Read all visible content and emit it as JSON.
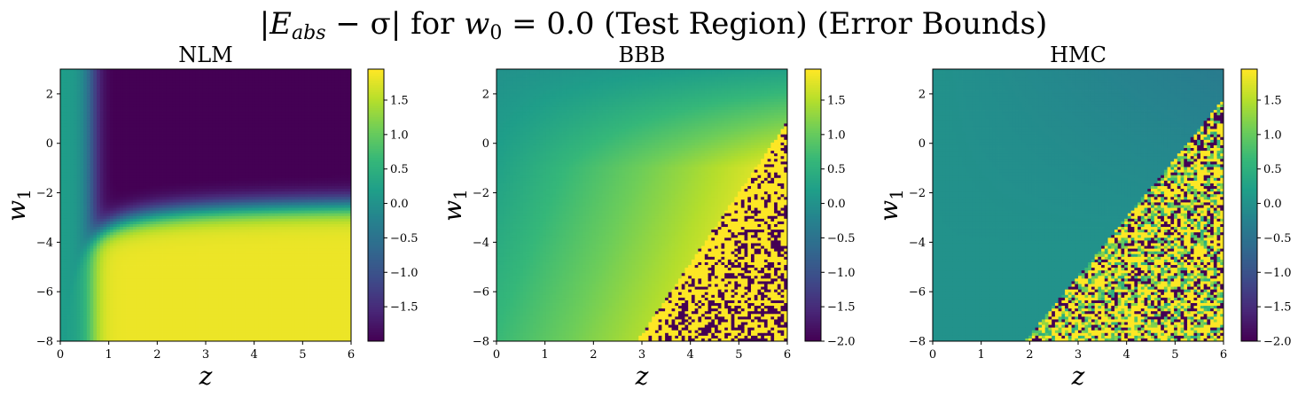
{
  "figure": {
    "title": "|E_abs − σ| for w₀ = 0.0 (Test Region) (Error Bounds)",
    "title_parts": {
      "bar_open": "|",
      "E": "E",
      "E_sub": "abs",
      "minus": " − σ| for ",
      "w": "w",
      "w_sub": "0",
      "rest": " = 0.0 (Test Region) (Error Bounds)"
    },
    "colormap": "viridis"
  },
  "chart_data": [
    {
      "type": "heatmap",
      "title": "NLM",
      "xlabel": "z",
      "ylabel": "w",
      "ylabel_sub": "1",
      "xlim": [
        0,
        6
      ],
      "ylim": [
        -8,
        3
      ],
      "xticks": [
        "0",
        "1",
        "2",
        "3",
        "4",
        "5",
        "6"
      ],
      "yticks": [
        "−8",
        "−6",
        "−4",
        "−2",
        "0",
        "2"
      ],
      "ytick_values": [
        -8,
        -6,
        -4,
        -2,
        0,
        2
      ],
      "colorbar": {
        "min": -2.0,
        "max": 1.95,
        "ticks": [
          "−1.5",
          "−1.0",
          "−0.5",
          "0.0",
          "0.5",
          "1.0",
          "1.5"
        ],
        "tick_values": [
          -1.5,
          -1.0,
          -0.5,
          0.0,
          0.5,
          1.0,
          1.5
        ]
      }
    },
    {
      "type": "heatmap",
      "title": "BBB",
      "xlabel": "z",
      "ylabel": "w",
      "ylabel_sub": "1",
      "xlim": [
        0,
        6
      ],
      "ylim": [
        -8,
        3
      ],
      "xticks": [
        "0",
        "1",
        "2",
        "3",
        "4",
        "5",
        "6"
      ],
      "yticks": [
        "−8",
        "−6",
        "−4",
        "−2",
        "0",
        "2"
      ],
      "ytick_values": [
        -8,
        -6,
        -4,
        -2,
        0,
        2
      ],
      "colorbar": {
        "min": -2.0,
        "max": 1.95,
        "ticks": [
          "−2.0",
          "−1.5",
          "−1.0",
          "−0.5",
          "0.0",
          "0.5",
          "1.0",
          "1.5"
        ],
        "tick_values": [
          -2.0,
          -1.5,
          -1.0,
          -0.5,
          0.0,
          0.5,
          1.0,
          1.5
        ]
      }
    },
    {
      "type": "heatmap",
      "title": "HMC",
      "xlabel": "z",
      "ylabel": "w",
      "ylabel_sub": "1",
      "xlim": [
        0,
        6
      ],
      "ylim": [
        -8,
        3
      ],
      "xticks": [
        "0",
        "1",
        "2",
        "3",
        "4",
        "5",
        "6"
      ],
      "yticks": [
        "−8",
        "−6",
        "−4",
        "−2",
        "0",
        "2"
      ],
      "ytick_values": [
        -8,
        -6,
        -4,
        -2,
        0,
        2
      ],
      "colorbar": {
        "min": -2.0,
        "max": 1.95,
        "ticks": [
          "−2.0",
          "−1.5",
          "−1.0",
          "−0.5",
          "0.0",
          "0.5",
          "1.0",
          "1.5"
        ],
        "tick_values": [
          -2.0,
          -1.5,
          -1.0,
          -0.5,
          0.0,
          0.5,
          1.0,
          1.5
        ]
      }
    }
  ]
}
